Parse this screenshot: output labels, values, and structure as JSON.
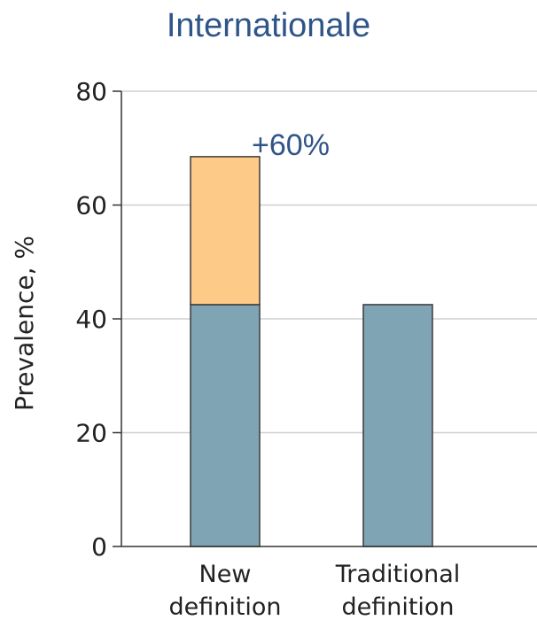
{
  "title": "Internationale",
  "chart_data": {
    "type": "bar",
    "stacked": true,
    "categories": [
      "New definition",
      "Traditional definition"
    ],
    "category_lines": [
      [
        "New",
        "definition"
      ],
      [
        "Traditional",
        "definition"
      ]
    ],
    "series": [
      {
        "values": [
          42.5,
          42.5
        ],
        "color": "#7fa5b5"
      },
      {
        "values": [
          26,
          0
        ],
        "color": "#fdca87"
      }
    ],
    "ylabel": "Prevalence, %",
    "xlabel": "",
    "ylim": [
      0,
      80
    ],
    "yticks": [
      "0",
      "20",
      "40",
      "60",
      "80"
    ],
    "grid": true,
    "annotation": {
      "text": "+60%",
      "category": "New definition"
    }
  }
}
